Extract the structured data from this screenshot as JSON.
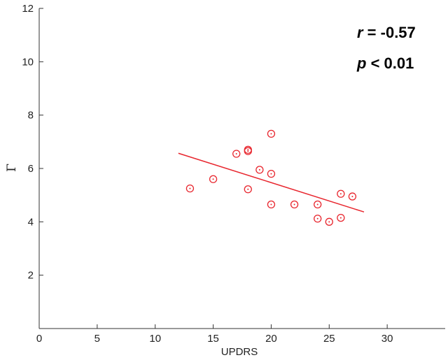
{
  "chart_data": {
    "type": "scatter",
    "title": "",
    "xlabel": "UPDRS",
    "ylabel": "Γ",
    "xlim": [
      0,
      35
    ],
    "ylim": [
      0,
      12
    ],
    "xticks": [
      0,
      5,
      10,
      15,
      20,
      25,
      30
    ],
    "yticks": [
      2,
      4,
      6,
      8,
      10,
      12
    ],
    "grid": false,
    "marker_color": "#e8262e",
    "line_color": "#e8262e",
    "points": [
      {
        "x": 13,
        "y": 5.25
      },
      {
        "x": 15,
        "y": 5.6
      },
      {
        "x": 17,
        "y": 6.55
      },
      {
        "x": 18,
        "y": 6.65
      },
      {
        "x": 18,
        "y": 6.7
      },
      {
        "x": 18,
        "y": 5.22
      },
      {
        "x": 19,
        "y": 5.95
      },
      {
        "x": 20,
        "y": 7.3
      },
      {
        "x": 20,
        "y": 5.8
      },
      {
        "x": 20,
        "y": 4.65
      },
      {
        "x": 22,
        "y": 4.65
      },
      {
        "x": 24,
        "y": 4.65
      },
      {
        "x": 24,
        "y": 4.12
      },
      {
        "x": 25,
        "y": 4.0
      },
      {
        "x": 26,
        "y": 5.05
      },
      {
        "x": 26,
        "y": 4.15
      },
      {
        "x": 27,
        "y": 4.95
      }
    ],
    "fit_line": {
      "x1": 12,
      "y1": 6.57,
      "x2": 28,
      "y2": 4.37
    },
    "annotations": {
      "r_symbol": "r",
      "r_text": " = -0.57",
      "p_symbol": "p",
      "p_text": " < 0.01"
    }
  }
}
